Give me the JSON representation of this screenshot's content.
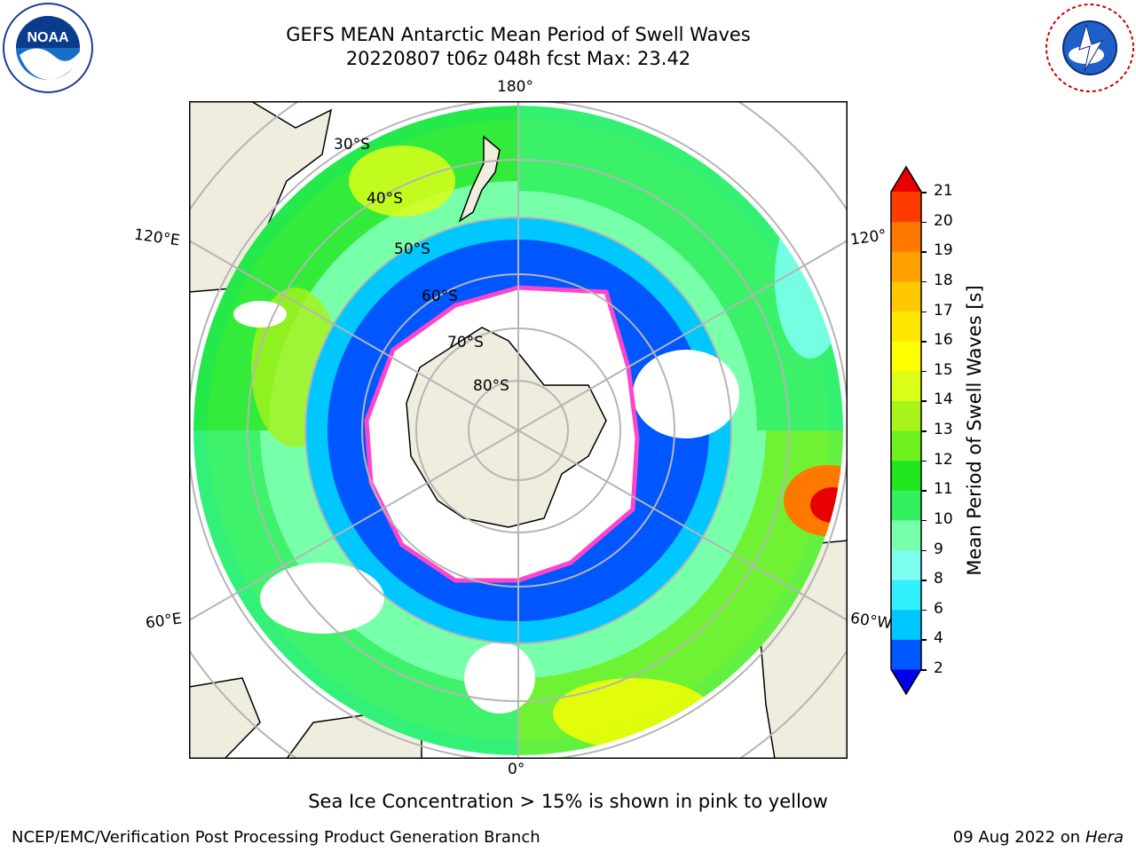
{
  "header": {
    "title": "GEFS MEAN Antarctic Mean Period of Swell Waves",
    "subtitle": "20220807 t06z 048h fcst   Max: 23.42"
  },
  "logos": {
    "left": "noaa-logo",
    "right": "nws-logo"
  },
  "map": {
    "projection": "south-polar-stereographic",
    "longitude_labels": {
      "top": "180°",
      "bottom": "0°",
      "left_upper": "120°E",
      "left_lower": "60°E",
      "right_upper": "120°",
      "right_lower": "60°W"
    },
    "latitude_labels": [
      "30°S",
      "40°S",
      "50°S",
      "60°S",
      "70°S",
      "80°S"
    ],
    "land_color": "#efedde",
    "ocean_missing_color": "#ffffff",
    "sea_ice_edge_color": "#ff44cc"
  },
  "colorbar": {
    "label": "Mean Period of Swell Waves [s]",
    "ticks": [
      "21",
      "20",
      "19",
      "18",
      "17",
      "16",
      "15",
      "14",
      "13",
      "12",
      "11",
      "10",
      "9",
      "8",
      "6",
      "4",
      "2"
    ],
    "colors": [
      "#0000e6",
      "#0057ff",
      "#00c8ff",
      "#33f0ff",
      "#7dfff0",
      "#78ffaa",
      "#34f060",
      "#22e61e",
      "#6cf01e",
      "#a8f31a",
      "#dcff1a",
      "#ffff00",
      "#ffe600",
      "#ffc800",
      "#ffa000",
      "#ff7800",
      "#ff3c00",
      "#e60000"
    ]
  },
  "notes": {
    "sea_ice": "Sea Ice Concentration > 15% is shown in pink to yellow"
  },
  "footer": {
    "left": "NCEP/EMC/Verification Post Processing Product Generation Branch",
    "date": "09 Aug 2022 on",
    "machine": "Hera"
  }
}
